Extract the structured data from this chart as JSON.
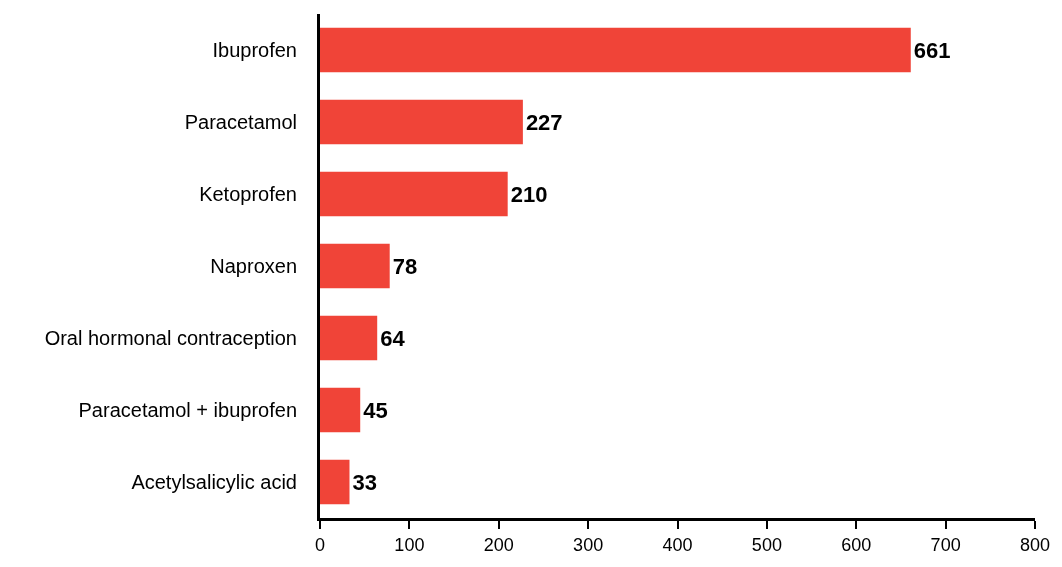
{
  "chart_data": {
    "type": "bar",
    "orientation": "horizontal",
    "categories": [
      "Ibuprofen",
      "Paracetamol",
      "Ketoprofen",
      "Naproxen",
      "Oral hormonal contraception",
      "Paracetamol + ibuprofen",
      "Acetylsalicylic acid"
    ],
    "values": [
      661,
      227,
      210,
      78,
      64,
      45,
      33
    ],
    "color": "#f04438",
    "xlim": [
      0,
      800
    ],
    "xticks": [
      0,
      100,
      200,
      300,
      400,
      500,
      600,
      700,
      800
    ],
    "data_labels": true,
    "legend": false
  }
}
